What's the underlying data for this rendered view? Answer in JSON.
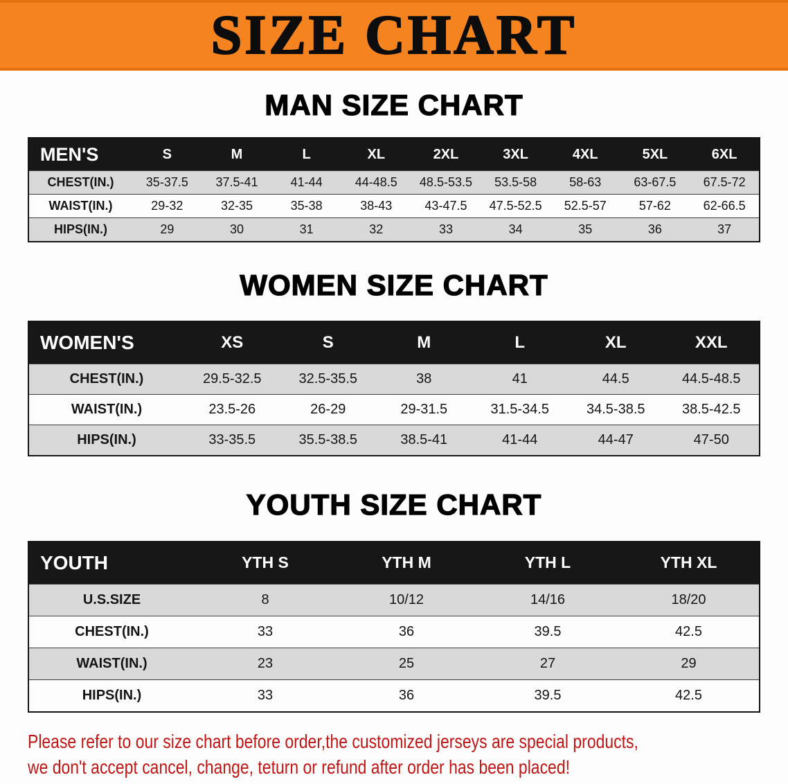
{
  "banner": {
    "title": "SIZE CHART",
    "bg_color": "#f5831f"
  },
  "sections": [
    {
      "heading": "MAN SIZE CHART",
      "header_label": "MEN'S",
      "columns": [
        "S",
        "M",
        "L",
        "XL",
        "2XL",
        "3XL",
        "4XL",
        "5XL",
        "6XL"
      ],
      "rows": [
        {
          "label": "CHEST(IN.)",
          "values": [
            "35-37.5",
            "37.5-41",
            "41-44",
            "44-48.5",
            "48.5-53.5",
            "53.5-58",
            "58-63",
            "63-67.5",
            "67.5-72"
          ]
        },
        {
          "label": "WAIST(IN.)",
          "values": [
            "29-32",
            "32-35",
            "35-38",
            "38-43",
            "43-47.5",
            "47.5-52.5",
            "52.5-57",
            "57-62",
            "62-66.5"
          ]
        },
        {
          "label": "HIPS(IN.)",
          "values": [
            "29",
            "30",
            "31",
            "32",
            "33",
            "34",
            "35",
            "36",
            "37"
          ]
        }
      ]
    },
    {
      "heading": "WOMEN SIZE CHART",
      "header_label": "WOMEN'S",
      "columns": [
        "XS",
        "S",
        "M",
        "L",
        "XL",
        "XXL"
      ],
      "rows": [
        {
          "label": "CHEST(IN.)",
          "values": [
            "29.5-32.5",
            "32.5-35.5",
            "38",
            "41",
            "44.5",
            "44.5-48.5"
          ]
        },
        {
          "label": "WAIST(IN.)",
          "values": [
            "23.5-26",
            "26-29",
            "29-31.5",
            "31.5-34.5",
            "34.5-38.5",
            "38.5-42.5"
          ]
        },
        {
          "label": "HIPS(IN.)",
          "values": [
            "33-35.5",
            "35.5-38.5",
            "38.5-41",
            "41-44",
            "44-47",
            "47-50"
          ]
        }
      ]
    },
    {
      "heading": "YOUTH SIZE CHART",
      "header_label": "YOUTH",
      "columns": [
        "YTH S",
        "YTH M",
        "YTH L",
        "YTH XL"
      ],
      "rows": [
        {
          "label": "U.S.SIZE",
          "values": [
            "8",
            "10/12",
            "14/16",
            "18/20"
          ]
        },
        {
          "label": "CHEST(IN.)",
          "values": [
            "33",
            "36",
            "39.5",
            "42.5"
          ]
        },
        {
          "label": "WAIST(IN.)",
          "values": [
            "23",
            "25",
            "27",
            "29"
          ]
        },
        {
          "label": "HIPS(IN.)",
          "values": [
            "33",
            "36",
            "39.5",
            "42.5"
          ]
        }
      ]
    }
  ],
  "footer": {
    "line1": "Please refer to our size chart before order,the customized jerseys are special products,",
    "line2": "we don't accept cancel, change, teturn or refund after order has been placed!",
    "text_color": "#c01515"
  }
}
